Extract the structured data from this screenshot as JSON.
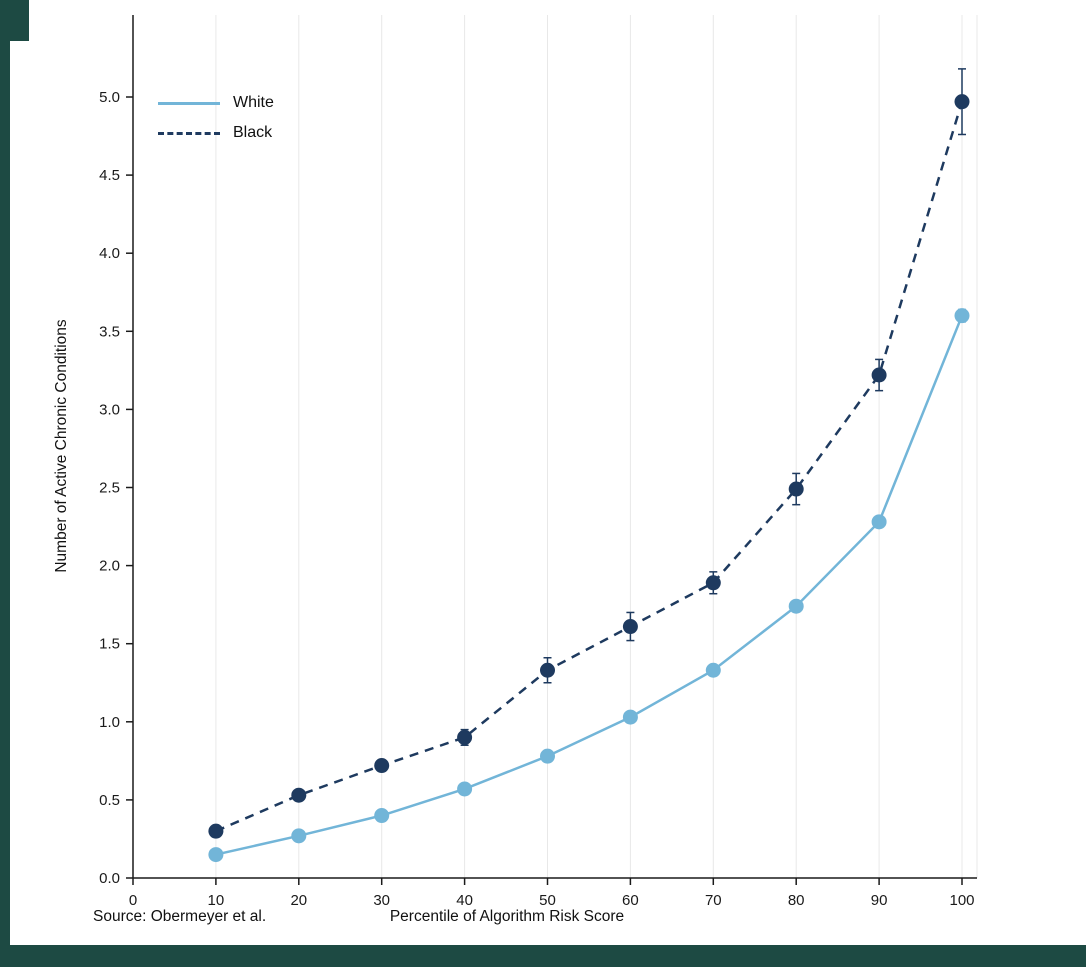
{
  "frame": {
    "accent_color": "#1d4a43"
  },
  "chart_data": {
    "type": "line",
    "title": "",
    "xlabel": "Percentile of Algorithm Risk Score",
    "ylabel": "Number of Active Chronic Conditions",
    "source": "Source: Obermeyer et al.",
    "xlim": [
      0,
      102
    ],
    "ylim": [
      0,
      5.2
    ],
    "x_ticks": [
      0,
      10,
      20,
      30,
      40,
      50,
      60,
      70,
      80,
      90,
      100
    ],
    "y_ticks": [
      0,
      0.5,
      1,
      1.5,
      2,
      2.5,
      3,
      3.5,
      4,
      4.5,
      5
    ],
    "grid": "vertical-only",
    "legend_position": "top-left",
    "series": [
      {
        "name": "White",
        "color": "#72b5d8",
        "line_style": "solid",
        "marker": "circle",
        "x": [
          10,
          20,
          30,
          40,
          50,
          60,
          70,
          80,
          90,
          100
        ],
        "values": [
          0.15,
          0.27,
          0.4,
          0.57,
          0.78,
          1.03,
          1.33,
          1.74,
          2.28,
          3.6
        ],
        "errors": [
          0.02,
          0.02,
          0.02,
          0.02,
          0.02,
          0.02,
          0.02,
          0.03,
          0.03,
          0.04
        ]
      },
      {
        "name": "Black",
        "color": "#1e3a5f",
        "line_style": "dashed",
        "marker": "circle",
        "x": [
          10,
          20,
          30,
          40,
          50,
          60,
          70,
          80,
          90,
          100
        ],
        "values": [
          0.3,
          0.53,
          0.72,
          0.9,
          1.33,
          1.61,
          1.89,
          2.49,
          3.22,
          4.97
        ],
        "errors": [
          0.03,
          0.03,
          0.03,
          0.05,
          0.08,
          0.09,
          0.07,
          0.1,
          0.1,
          0.21
        ]
      }
    ]
  }
}
